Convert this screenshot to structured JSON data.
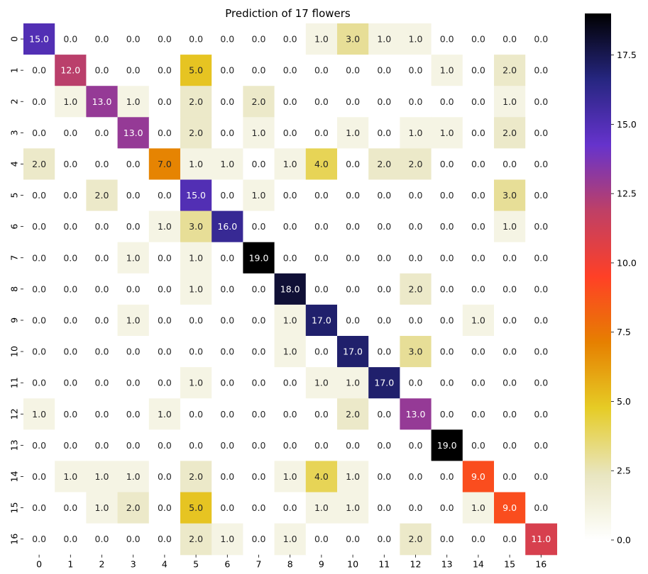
{
  "chart_data": {
    "type": "heatmap",
    "title": "Prediction of 17 flowers",
    "xlabel": "",
    "ylabel": "",
    "x_categories": [
      "0",
      "1",
      "2",
      "3",
      "4",
      "5",
      "6",
      "7",
      "8",
      "9",
      "10",
      "11",
      "12",
      "13",
      "14",
      "15",
      "16"
    ],
    "y_categories": [
      "0",
      "1",
      "2",
      "3",
      "4",
      "5",
      "6",
      "7",
      "8",
      "9",
      "10",
      "11",
      "12",
      "13",
      "14",
      "15",
      "16"
    ],
    "values": [
      [
        15,
        0,
        0,
        0,
        0,
        0,
        0,
        0,
        0,
        1,
        3,
        1,
        1,
        0,
        0,
        0,
        0
      ],
      [
        0,
        12,
        0,
        0,
        0,
        5,
        0,
        0,
        0,
        0,
        0,
        0,
        0,
        1,
        0,
        2,
        0
      ],
      [
        0,
        1,
        13,
        1,
        0,
        2,
        0,
        2,
        0,
        0,
        0,
        0,
        0,
        0,
        0,
        1,
        0
      ],
      [
        0,
        0,
        0,
        13,
        0,
        2,
        0,
        1,
        0,
        0,
        1,
        0,
        1,
        1,
        0,
        2,
        0
      ],
      [
        2,
        0,
        0,
        0,
        7,
        1,
        1,
        0,
        1,
        4,
        0,
        2,
        2,
        0,
        0,
        0,
        0
      ],
      [
        0,
        0,
        2,
        0,
        0,
        15,
        0,
        1,
        0,
        0,
        0,
        0,
        0,
        0,
        0,
        3,
        0
      ],
      [
        0,
        0,
        0,
        0,
        1,
        3,
        16,
        0,
        0,
        0,
        0,
        0,
        0,
        0,
        0,
        1,
        0
      ],
      [
        0,
        0,
        0,
        1,
        0,
        1,
        0,
        19,
        0,
        0,
        0,
        0,
        0,
        0,
        0,
        0,
        0
      ],
      [
        0,
        0,
        0,
        0,
        0,
        1,
        0,
        0,
        18,
        0,
        0,
        0,
        2,
        0,
        0,
        0,
        0
      ],
      [
        0,
        0,
        0,
        1,
        0,
        0,
        0,
        0,
        1,
        17,
        0,
        0,
        0,
        0,
        1,
        0,
        0
      ],
      [
        0,
        0,
        0,
        0,
        0,
        0,
        0,
        0,
        1,
        0,
        17,
        0,
        3,
        0,
        0,
        0,
        0
      ],
      [
        0,
        0,
        0,
        0,
        0,
        1,
        0,
        0,
        0,
        1,
        1,
        17,
        0,
        0,
        0,
        0,
        0
      ],
      [
        1,
        0,
        0,
        0,
        1,
        0,
        0,
        0,
        0,
        0,
        2,
        0,
        13,
        0,
        0,
        0,
        0
      ],
      [
        0,
        0,
        0,
        0,
        0,
        0,
        0,
        0,
        0,
        0,
        0,
        0,
        0,
        19,
        0,
        0,
        0
      ],
      [
        0,
        1,
        1,
        1,
        0,
        2,
        0,
        0,
        1,
        4,
        1,
        0,
        0,
        0,
        9,
        0,
        0
      ],
      [
        0,
        0,
        1,
        2,
        0,
        5,
        0,
        0,
        0,
        1,
        1,
        0,
        0,
        0,
        1,
        9,
        0
      ],
      [
        0,
        0,
        0,
        0,
        0,
        2,
        1,
        0,
        1,
        0,
        0,
        0,
        2,
        0,
        0,
        0,
        11
      ]
    ],
    "value_format": "1 decimal",
    "colormap": "CMRmap_r",
    "color_range": [
      0,
      19
    ],
    "colorbar": {
      "ticks": [
        0.0,
        2.5,
        5.0,
        7.5,
        10.0,
        12.5,
        15.0,
        17.5
      ],
      "tick_labels": [
        "0.0",
        "2.5",
        "5.0",
        "7.5",
        "10.0",
        "12.5",
        "15.0",
        "17.5"
      ],
      "placement": "right"
    },
    "annotated": true,
    "grid": false
  }
}
